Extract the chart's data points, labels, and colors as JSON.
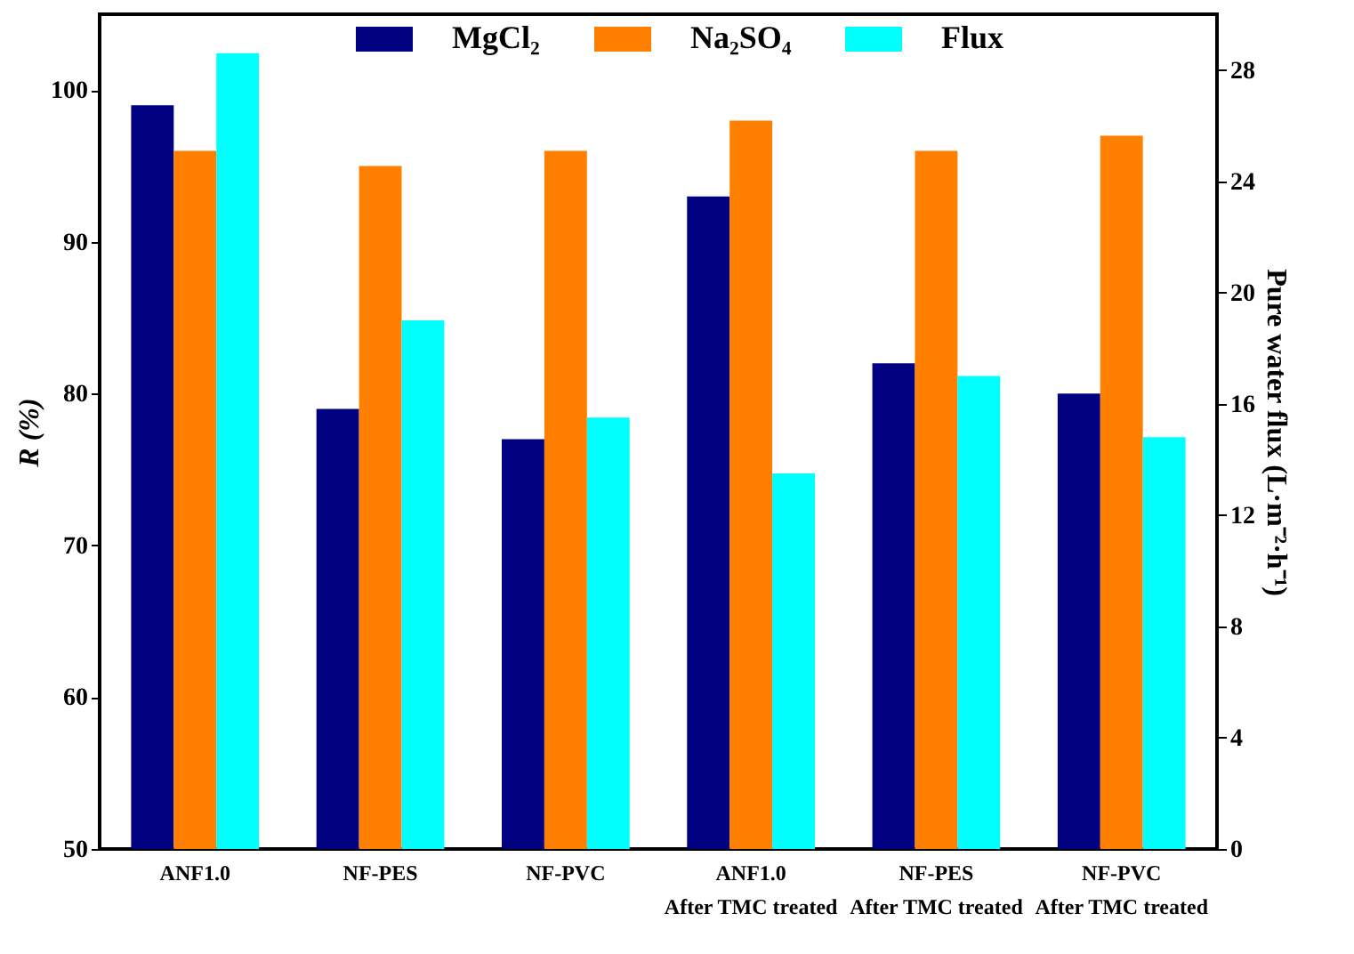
{
  "chart_data": {
    "type": "bar",
    "categories": [
      "ANF1.0",
      "NF-PES",
      "NF-PVC",
      "ANF1.0\nAfter TMC treated",
      "NF-PES\nAfter TMC treated",
      "NF-PVC\nAfter TMC treated"
    ],
    "series": [
      {
        "name": "MgCl₂",
        "color": "#000080",
        "values": [
          99,
          79,
          77,
          93,
          82,
          80
        ]
      },
      {
        "name": "Na₂SO₄",
        "color": "#ff8000",
        "values": [
          96,
          95,
          96,
          98,
          96,
          97
        ]
      },
      {
        "name": "Flux",
        "color": "#00ffff",
        "axis": "y2",
        "values": [
          28.6,
          19.0,
          15.5,
          13.5,
          17.0,
          14.8
        ]
      }
    ],
    "ylabel": "R (%)",
    "y2label": "Pure water flux (L·m⁻²·h⁻¹)",
    "ylim": [
      50,
      105
    ],
    "yticks": [
      50,
      60,
      70,
      80,
      90,
      100
    ],
    "y2lim": [
      0,
      30
    ],
    "y2ticks": [
      0,
      4,
      8,
      12,
      16,
      20,
      24,
      28
    ],
    "legend": "top",
    "grid": false
  }
}
